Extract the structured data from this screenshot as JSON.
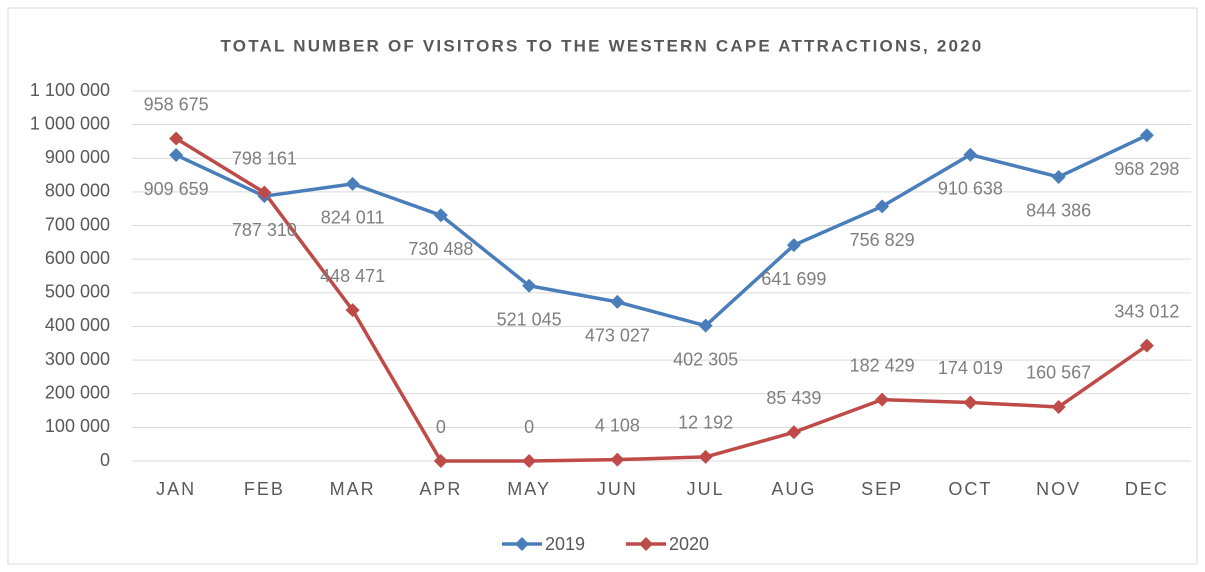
{
  "chart_data": {
    "type": "line",
    "title": "TOTAL NUMBER OF VISITORS TO THE WESTERN CAPE ATTRACTIONS, 2020",
    "categories": [
      "JAN",
      "FEB",
      "MAR",
      "APR",
      "MAY",
      "JUN",
      "JUL",
      "AUG",
      "SEP",
      "OCT",
      "NOV",
      "DEC"
    ],
    "series": [
      {
        "name": "2019",
        "color": "#4a7ebb",
        "values": [
          909659,
          787310,
          824011,
          730488,
          521045,
          473027,
          402305,
          641699,
          756829,
          910638,
          844386,
          968298
        ],
        "value_labels": [
          "909 659",
          "787 310",
          "824 011",
          "730 488",
          "521 045",
          "473 027",
          "402 305",
          "641 699",
          "756 829",
          "910 638",
          "844 386",
          "968 298"
        ]
      },
      {
        "name": "2020",
        "color": "#be4b48",
        "values": [
          958675,
          798161,
          448471,
          0,
          0,
          4108,
          12192,
          85439,
          182429,
          174019,
          160567,
          343012
        ],
        "value_labels": [
          "958 675",
          "798 161",
          "448 471",
          "0",
          "0",
          "4 108",
          "12 192",
          "85 439",
          "182 429",
          "174 019",
          "160 567",
          "343 012"
        ]
      }
    ],
    "ylim": [
      0,
      1100000
    ],
    "yticks": [
      0,
      {
        "value": 100000,
        "label": "100 000"
      },
      {
        "value": 200000,
        "label": "200 000"
      },
      {
        "value": 300000,
        "label": "300 000"
      },
      {
        "value": 400000,
        "label": "400 000"
      },
      {
        "value": 500000,
        "label": "500 000"
      },
      {
        "value": 600000,
        "label": "600 000"
      },
      {
        "value": 700000,
        "label": "700 000"
      },
      {
        "value": 800000,
        "label": "800 000"
      },
      {
        "value": 900000,
        "label": "900 000"
      },
      {
        "value": 1000000,
        "label": "1 000 000"
      },
      {
        "value": 1100000,
        "label": "1 100 000"
      }
    ],
    "grid": true,
    "legend": "bottom"
  }
}
